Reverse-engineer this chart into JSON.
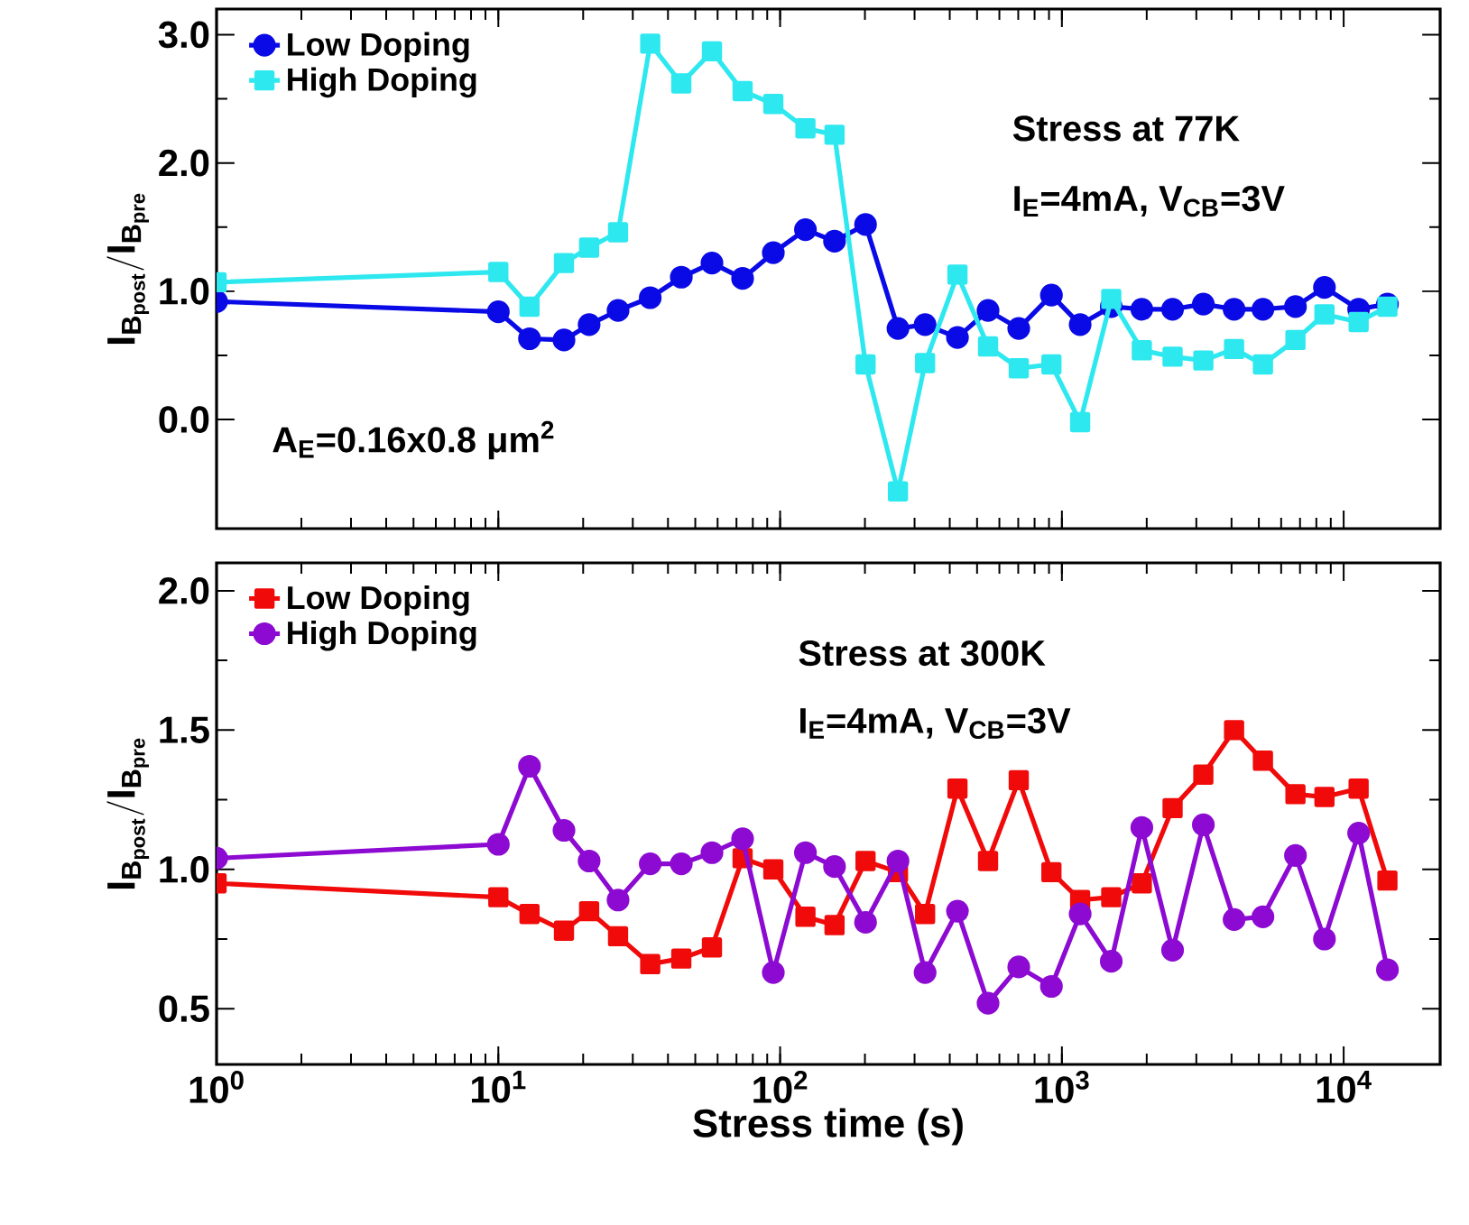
{
  "chart_data": [
    {
      "type": "line",
      "ylabel": "\\mathbf{I_{B_{post}} / I_{B_{pre}}}",
      "log": "x",
      "legend": "top left",
      "tick_labels": "y",
      "annotations": [
        "**Stress at 77K**",
        "**I$_{E}$=4mA, V$_{CB}$=3V**",
        "**A$_{E}$=0.16x0.8 μm$^{2}$**"
      ],
      "xlim": [
        1,
        22000
      ],
      "ylim": [
        -0.85,
        3.2
      ],
      "xticks": [
        {
          "value": 1,
          "label": null
        },
        {
          "value": 10,
          "label": null
        },
        {
          "value": 100,
          "label": null
        },
        {
          "value": 1000,
          "label": null
        },
        {
          "value": 10000,
          "label": null
        }
      ],
      "yticks": [
        {
          "value": 0,
          "label": "0.0"
        },
        {
          "value": 1,
          "label": "1.0"
        },
        {
          "value": 2,
          "label": "2.0"
        },
        {
          "value": 3,
          "label": "3.0"
        }
      ],
      "x": [
        1,
        10,
        12.9,
        17.1,
        21,
        26.6,
        34.6,
        44.6,
        57.3,
        73.6,
        94.6,
        123,
        156,
        201,
        262,
        327,
        426,
        547,
        703,
        918,
        1161,
        1497,
        1922,
        2471,
        3177,
        4084,
        5170,
        6744,
        8547,
        11300,
        14300
      ],
      "series": [
        {
          "name": "Low Doping",
          "color": "#0a0ae6",
          "marker": "circle",
          "values": [
            0.92,
            0.84,
            0.63,
            0.62,
            0.74,
            0.85,
            0.95,
            1.11,
            1.22,
            1.1,
            1.3,
            1.48,
            1.39,
            1.52,
            0.71,
            0.74,
            0.64,
            0.85,
            0.71,
            0.97,
            0.74,
            0.88,
            0.86,
            0.86,
            0.9,
            0.86,
            0.86,
            0.88,
            1.03,
            0.86,
            0.9
          ]
        },
        {
          "name": "High Doping",
          "color": "#2ee8f0",
          "marker": "square",
          "values": [
            1.07,
            1.15,
            0.88,
            1.22,
            1.34,
            1.46,
            2.93,
            2.62,
            2.87,
            2.56,
            2.46,
            2.27,
            2.22,
            0.43,
            -0.56,
            0.44,
            1.13,
            0.57,
            0.4,
            0.43,
            -0.02,
            0.94,
            0.54,
            0.49,
            0.46,
            0.55,
            0.43,
            0.62,
            0.82,
            0.76,
            0.88
          ]
        }
      ]
    },
    {
      "type": "line",
      "xlabel": "Stress time (s)",
      "ylabel": "\\mathbf{I_{B_{post}} / I_{B_{pre}}}",
      "log": "x",
      "legend": "top left",
      "annotations": [
        "**Stress at 300K**",
        "**I$_{E}$=4mA, V$_{CB}$=3V**"
      ],
      "xlim": [
        1,
        22000
      ],
      "ylim": [
        0.3,
        2.1
      ],
      "xticks": [
        {
          "value": 1,
          "label": "10$^{0}$"
        },
        {
          "value": 10,
          "label": "10$^{1}$"
        },
        {
          "value": 100,
          "label": "10$^{2}$"
        },
        {
          "value": 1000,
          "label": "10$^{3}$"
        },
        {
          "value": 10000,
          "label": "10$^{4}$"
        }
      ],
      "yticks": [
        0.5,
        {
          "value": 1,
          "label": "1.0"
        },
        1.5,
        {
          "value": 2,
          "label": "2.0"
        }
      ],
      "x": [
        1,
        10,
        12.9,
        17.1,
        21,
        26.6,
        34.6,
        44.6,
        57.3,
        73.6,
        94.6,
        123,
        156,
        201,
        262,
        327,
        426,
        547,
        703,
        918,
        1161,
        1497,
        1922,
        2471,
        3177,
        4084,
        5170,
        6744,
        8547,
        11300,
        14300
      ],
      "series": [
        {
          "name": "Low Doping",
          "color": "#f00a0a",
          "marker": "square",
          "values": [
            0.95,
            0.9,
            0.84,
            0.78,
            0.85,
            0.76,
            0.66,
            0.68,
            0.72,
            1.04,
            1.0,
            0.83,
            0.8,
            1.03,
            0.99,
            0.84,
            1.29,
            1.03,
            1.32,
            0.99,
            0.89,
            0.9,
            0.95,
            1.22,
            1.34,
            1.5,
            1.39,
            1.27,
            1.26,
            1.29,
            0.96
          ]
        },
        {
          "name": "High Doping",
          "color": "#8c0ad2",
          "marker": "circle",
          "values": [
            1.04,
            1.09,
            1.37,
            1.14,
            1.03,
            0.89,
            1.02,
            1.02,
            1.06,
            1.11,
            0.63,
            1.06,
            1.01,
            0.81,
            1.03,
            0.63,
            0.85,
            0.52,
            0.65,
            0.58,
            0.84,
            0.67,
            1.15,
            0.71,
            1.16,
            0.82,
            0.83,
            1.05,
            0.75,
            1.13,
            0.64
          ]
        }
      ]
    }
  ]
}
